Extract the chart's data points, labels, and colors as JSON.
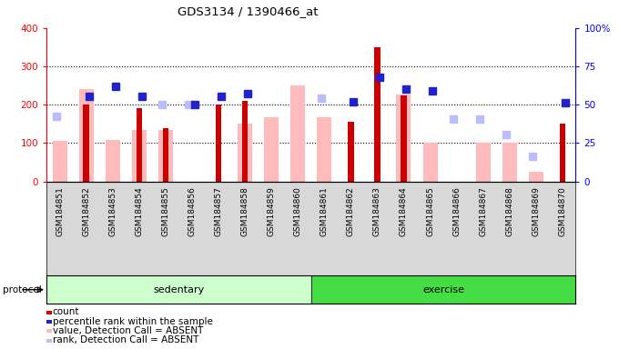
{
  "title": "GDS3134 / 1390466_at",
  "samples": [
    "GSM184851",
    "GSM184852",
    "GSM184853",
    "GSM184854",
    "GSM184855",
    "GSM184856",
    "GSM184857",
    "GSM184858",
    "GSM184859",
    "GSM184860",
    "GSM184861",
    "GSM184862",
    "GSM184863",
    "GSM184864",
    "GSM184865",
    "GSM184866",
    "GSM184867",
    "GSM184868",
    "GSM184869",
    "GSM184870"
  ],
  "count_values": [
    null,
    200,
    null,
    190,
    140,
    null,
    200,
    210,
    null,
    null,
    null,
    155,
    350,
    225,
    null,
    null,
    null,
    null,
    null,
    150
  ],
  "rank_values": [
    null,
    222,
    248,
    222,
    null,
    200,
    222,
    228,
    null,
    null,
    null,
    207,
    272,
    240,
    235,
    null,
    null,
    null,
    null,
    205
  ],
  "absent_value": [
    105,
    240,
    107,
    135,
    135,
    null,
    null,
    150,
    167,
    250,
    167,
    null,
    null,
    226,
    101,
    null,
    102,
    100,
    25,
    null
  ],
  "absent_rank": [
    170,
    null,
    null,
    null,
    200,
    200,
    null,
    null,
    null,
    null,
    218,
    null,
    null,
    null,
    null,
    163,
    163,
    123,
    65,
    null
  ],
  "sedentary_count": 10,
  "exercise_count": 10,
  "sedentary_label": "sedentary",
  "exercise_label": "exercise",
  "protocol_label": "protocol",
  "ylim_left": [
    0,
    400
  ],
  "ylim_right": [
    0,
    100
  ],
  "yticks_left": [
    0,
    100,
    200,
    300,
    400
  ],
  "yticks_right": [
    0,
    25,
    50,
    75,
    100
  ],
  "bar_color_count": "#cc0000",
  "bar_color_rank": "#2222cc",
  "bar_color_absent_value": "#ffbbbb",
  "bar_color_absent_rank": "#bbbbff",
  "sedentary_bg": "#ccffcc",
  "exercise_bg": "#44dd44",
  "grid_color": "black",
  "tick_area_bg": "#d8d8d8",
  "legend_items": [
    {
      "label": "count",
      "color": "#cc0000"
    },
    {
      "label": "percentile rank within the sample",
      "color": "#2222cc"
    },
    {
      "label": "value, Detection Call = ABSENT",
      "color": "#ffbbbb"
    },
    {
      "label": "rank, Detection Call = ABSENT",
      "color": "#bbbbff"
    }
  ]
}
